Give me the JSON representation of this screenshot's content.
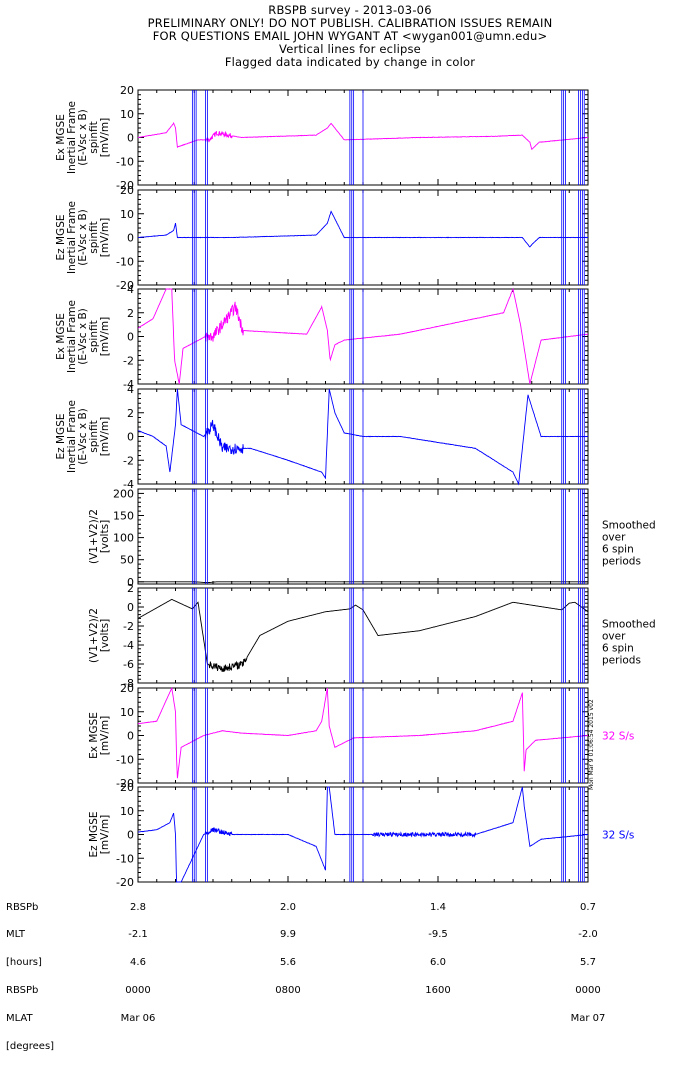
{
  "title": {
    "lines": [
      "RBSPB survey - 2013-03-06",
      "PRELIMINARY ONLY! DO NOT PUBLISH. CALIBRATION ISSUES REMAIN",
      "FOR QUESTIONS EMAIL JOHN WYGANT AT <wygan001@umn.edu>",
      "Vertical lines for eclipse",
      "Flagged data indicated by change in color"
    ]
  },
  "colors": {
    "magenta": "#ff00ff",
    "blue": "#0000ff",
    "black": "#000000",
    "eclipse": "#0000ff"
  },
  "eclipse_lines_hours": [
    2.9,
    3.0,
    3.1,
    3.6,
    3.7,
    11.3,
    11.4,
    11.5,
    12.0,
    22.6,
    22.7,
    22.8,
    23.5,
    23.6,
    23.7,
    23.8
  ],
  "chart_data": [
    {
      "type": "line",
      "ylabel": [
        "Ex MGSE",
        "Inertial Frame",
        "(E-Vsc x B)",
        "spinfit",
        "[mV/m]"
      ],
      "ylim": [
        -20,
        20
      ],
      "yticks": [
        -20,
        -10,
        0,
        10,
        20
      ],
      "color": "#ff00ff",
      "x_hours": [
        0,
        1.5,
        1.9,
        2.0,
        2.1,
        3.2,
        3.8,
        4.2,
        4.8,
        5.5,
        9.5,
        10.1,
        10.3,
        11.0,
        15.0,
        19.0,
        20.5,
        20.9,
        21.0,
        21.4,
        24
      ],
      "values": [
        0,
        2,
        6,
        4,
        -4,
        -1,
        -1,
        2,
        1,
        0,
        1,
        4,
        6,
        -1,
        0,
        0.5,
        1,
        -2,
        -5,
        -2,
        0
      ]
    },
    {
      "type": "line",
      "ylabel": [
        "Ez MGSE",
        "Inertial Frame",
        "(E-Vsc x B)",
        "spinfit",
        "[mV/m]"
      ],
      "ylim": [
        -20,
        20
      ],
      "yticks": [
        -20,
        -10,
        0,
        10,
        20
      ],
      "color": "#0000ff",
      "x_hours": [
        0,
        1.5,
        1.9,
        2.0,
        2.1,
        3.2,
        3.8,
        5.0,
        9.5,
        10.1,
        10.3,
        11.0,
        15.0,
        19.0,
        20.5,
        20.9,
        21.0,
        21.4,
        24
      ],
      "values": [
        0,
        1,
        3,
        6,
        0,
        0,
        0,
        0,
        1,
        6,
        11,
        0,
        0,
        0,
        0,
        -4,
        -3,
        0,
        0
      ]
    },
    {
      "type": "line",
      "ylabel": [
        "Ex MGSE",
        "Inertial Frame",
        "(E-Vsc x B)",
        "spinfit",
        "[mV/m]"
      ],
      "ylim": [
        -4,
        4
      ],
      "yticks": [
        -4,
        -2,
        0,
        2,
        4
      ],
      "color": "#ff00ff",
      "x_hours": [
        0,
        0.8,
        1.5,
        1.8,
        1.95,
        2.2,
        2.4,
        3.0,
        3.6,
        4.0,
        4.5,
        5.2,
        5.6,
        9.0,
        9.8,
        10.1,
        10.25,
        10.5,
        11.0,
        14.0,
        19.5,
        20.0,
        20.4,
        20.7,
        20.9,
        21.5,
        24
      ],
      "values": [
        0.7,
        1.5,
        4.0,
        4.0,
        -2.0,
        -4.0,
        -1.0,
        -0.5,
        0.0,
        0.0,
        1.0,
        2.5,
        0.5,
        0.2,
        2.5,
        0.5,
        -2.0,
        -0.7,
        -0.3,
        0.2,
        2.0,
        4.0,
        1.0,
        -2.0,
        -4.0,
        -0.3,
        0.2
      ]
    },
    {
      "type": "line",
      "ylabel": [
        "Ez MGSE",
        "Inertial Frame",
        "(E-Vsc x B)",
        "spinfit",
        "[mV/m]"
      ],
      "ylim": [
        -4,
        4
      ],
      "yticks": [
        -4,
        -2,
        0,
        2,
        4
      ],
      "color": "#0000ff",
      "x_hours": [
        0,
        0.8,
        1.5,
        1.7,
        2.0,
        2.1,
        2.3,
        3.5,
        4.0,
        4.5,
        6.0,
        8.0,
        9.8,
        10.0,
        10.2,
        10.5,
        11.0,
        12.0,
        14.0,
        18.0,
        20.0,
        20.3,
        20.8,
        21.1,
        21.5,
        24
      ],
      "values": [
        0.5,
        0.0,
        -0.8,
        -3.0,
        1.0,
        4.0,
        1.0,
        0.0,
        1.0,
        -1.0,
        -1.0,
        -2.0,
        -3.0,
        -3.5,
        4.0,
        2.0,
        0.3,
        0.0,
        0.0,
        -1.0,
        -3.0,
        -4.0,
        3.5,
        2.0,
        0.0,
        0.0
      ]
    },
    {
      "type": "line",
      "ylabel": [
        "(V1+V2)/2",
        "[volts]"
      ],
      "ylim": [
        -5,
        210
      ],
      "yticks": [
        0,
        50,
        100,
        150,
        200
      ],
      "color": "#000000",
      "x_hours": [
        0,
        2.9,
        3.0,
        3.7,
        4.2,
        11.3,
        12.0,
        24
      ],
      "values": [
        0,
        0,
        0,
        -2,
        0,
        0,
        0,
        0
      ],
      "annotation": [
        "Smoothed",
        "over",
        "6 spin",
        "periods"
      ]
    },
    {
      "type": "line",
      "ylabel": [
        "(V1+V2)/2",
        "[volts]"
      ],
      "ylim": [
        -8,
        2
      ],
      "yticks": [
        -8,
        -6,
        -4,
        -2,
        0,
        2
      ],
      "color": "#000000",
      "x_hours": [
        0,
        1.8,
        2.9,
        3.2,
        3.7,
        4.5,
        5.6,
        6.5,
        8.0,
        10.0,
        11.3,
        11.6,
        12.0,
        12.8,
        15.0,
        18.0,
        20.0,
        22.6,
        23.0,
        23.3,
        24
      ],
      "values": [
        -1.2,
        0.8,
        -0.2,
        0.5,
        -6.0,
        -6.5,
        -6.0,
        -3.0,
        -1.5,
        -0.5,
        -0.2,
        0.2,
        -0.3,
        -3.0,
        -2.5,
        -1.0,
        0.5,
        -0.3,
        0.4,
        0.5,
        -0.5
      ],
      "annotation": [
        "Smoothed",
        "over",
        "6 spin",
        "periods"
      ]
    },
    {
      "type": "line",
      "ylabel": [
        "Ex MGSE",
        "[mV/m]"
      ],
      "ylim": [
        -20,
        20
      ],
      "yticks": [
        -20,
        -10,
        0,
        10,
        20
      ],
      "color": "#ff00ff",
      "x_hours": [
        0,
        1.0,
        1.8,
        2.0,
        2.05,
        2.1,
        2.3,
        3.5,
        4.5,
        5.5,
        8.0,
        9.5,
        9.8,
        10.1,
        10.2,
        10.5,
        11.5,
        15.0,
        18.0,
        20.0,
        20.5,
        20.6,
        20.7,
        21.2,
        24
      ],
      "values": [
        5,
        6,
        20,
        10,
        -8,
        -18,
        -5,
        0,
        2,
        1,
        0,
        2,
        6,
        20,
        4,
        -5,
        -1,
        0,
        2,
        6,
        18,
        -15,
        -6,
        -2,
        0
      ],
      "annotation": [
        "32 S/s"
      ]
    },
    {
      "type": "line",
      "ylabel": [
        "Ez MGSE",
        "[mV/m]"
      ],
      "ylim": [
        -20,
        20
      ],
      "yticks": [
        -20,
        -10,
        0,
        10,
        20
      ],
      "color": "#0000ff",
      "x_hours": [
        0,
        1.0,
        1.7,
        1.9,
        2.0,
        2.05,
        2.3,
        3.5,
        4.0,
        5.0,
        8.0,
        9.5,
        10.0,
        10.1,
        10.2,
        10.5,
        11.5,
        15.0,
        18.0,
        20.0,
        20.5,
        20.6,
        20.9,
        21.5,
        24
      ],
      "values": [
        1,
        2,
        5,
        9,
        0,
        -20,
        -20,
        0,
        2,
        0,
        0,
        -5,
        -15,
        20,
        20,
        0,
        0,
        0,
        0,
        5,
        20,
        12,
        -5,
        -2,
        0
      ],
      "annotation": [
        "32 S/s"
      ]
    }
  ],
  "xaxis": {
    "hours_range": [
      0,
      24
    ],
    "ticks_hours": [
      0,
      8,
      16,
      24
    ],
    "row_labels": [
      "RBSPb",
      "MLT",
      "[hours]",
      "RBSPb",
      "MLAT",
      "[degrees]"
    ],
    "columns": [
      [
        "2.8",
        "-2.1",
        "4.6",
        "0000",
        "Mar 06"
      ],
      [
        "2.0",
        "9.9",
        "5.6",
        "0800",
        ""
      ],
      [
        "1.4",
        "-9.5",
        "6.0",
        "1600",
        ""
      ],
      [
        "0.7",
        "-2.0",
        "5.7",
        "0000",
        "Mar 07"
      ]
    ]
  },
  "version_tag": "Mon Mar 9 01:06:54 2015 v02"
}
